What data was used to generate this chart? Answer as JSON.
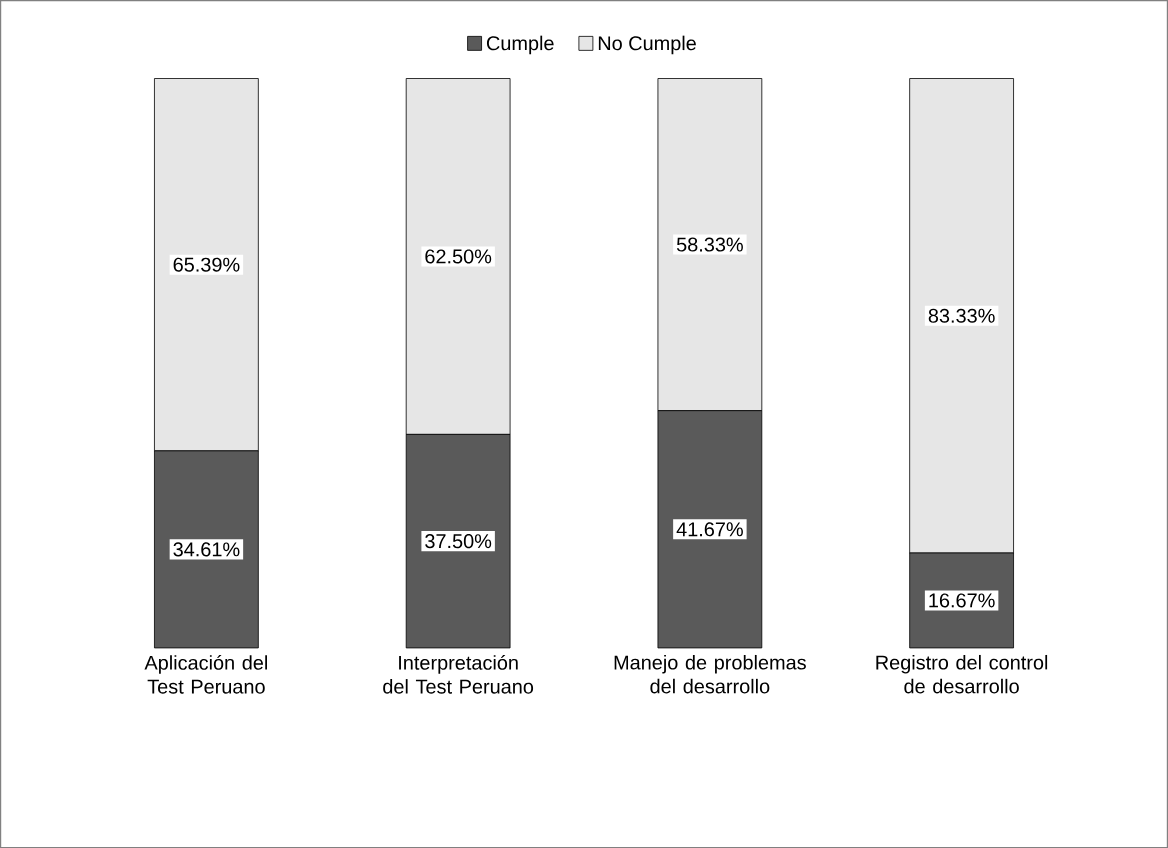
{
  "chart_data": {
    "type": "bar",
    "stacked": true,
    "legend": "top",
    "data_labels": true,
    "categories": [
      "Aplicación del Test Peruano",
      "Interpretación del Test Peruano",
      "Manejo de problemas del desarrollo",
      "Registro del control de desarrollo"
    ],
    "series": [
      {
        "name": "Cumple",
        "color": "#5a5a5a",
        "values": [
          34.61,
          37.5,
          41.67,
          16.67
        ],
        "value_labels": [
          "34.61%",
          "37.50%",
          "41.67%",
          "16.67%"
        ]
      },
      {
        "name": "No Cumple",
        "color": "#e6e6e6",
        "values": [
          65.39,
          62.5,
          58.33,
          83.33
        ],
        "value_labels": [
          "65.39%",
          "62.50%",
          "58.33%",
          "83.33%"
        ]
      }
    ]
  }
}
